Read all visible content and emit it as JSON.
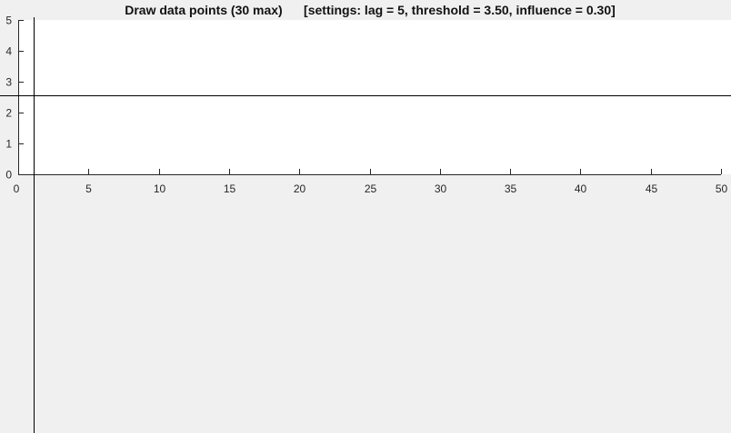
{
  "window": {
    "title": "Draw data points (30 max)      [settings: lag = 5, threshold = 3.50, influence = 0.30]"
  },
  "chart_data": {
    "type": "scatter",
    "title": "Draw data points (30 max)      [settings: lag = 5, threshold = 3.50, influence = 0.30]",
    "xlabel": "",
    "ylabel": "",
    "xlim": [
      0,
      50
    ],
    "ylim": [
      0,
      5
    ],
    "xticks": [
      "0",
      "5",
      "10",
      "15",
      "20",
      "25",
      "30",
      "35",
      "40",
      "45",
      "50"
    ],
    "yticks": [
      "0",
      "1",
      "2",
      "3",
      "4",
      "5"
    ],
    "grid": false,
    "series": [],
    "max_points": 30
  },
  "cursor": {
    "type": "crosshair",
    "x": 1.1,
    "y": 2.55
  },
  "colors": {
    "figure_background": "#f0f0f0",
    "axes_background": "#ffffff",
    "axis_color": "#262626",
    "crosshair_color": "#000000"
  }
}
